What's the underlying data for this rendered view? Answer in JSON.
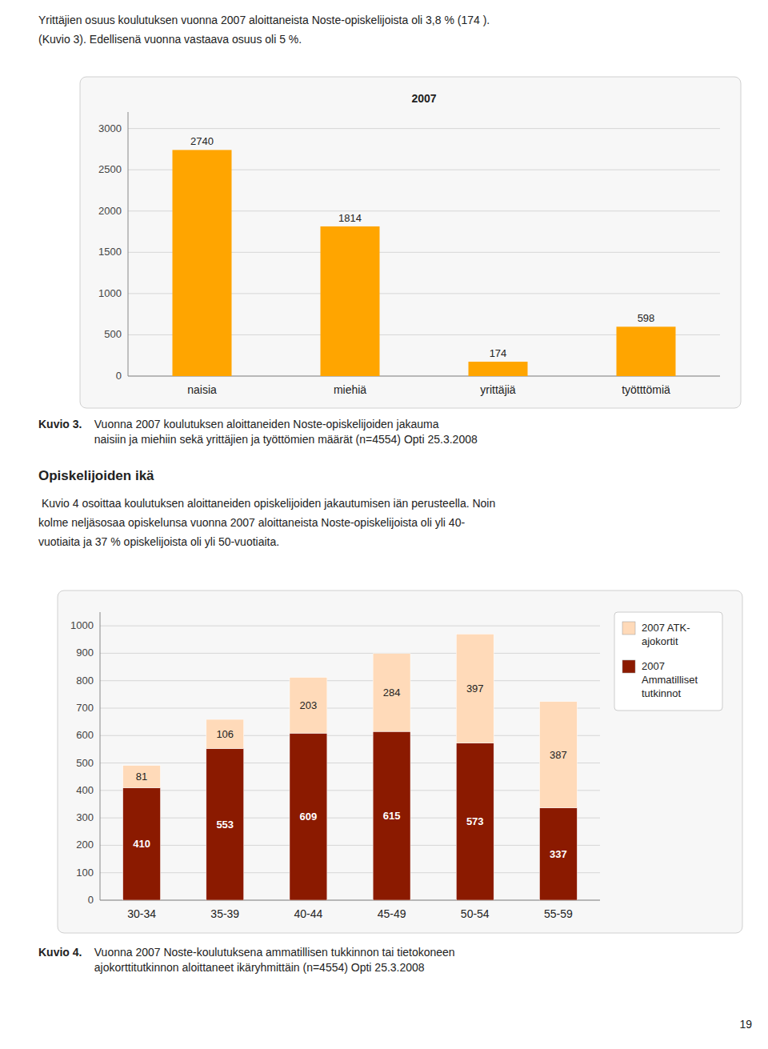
{
  "header_text": [
    "Yrittäjien osuus koulutuksen vuonna 2007 aloittaneista Noste-opiskelijoista oli 3,8 % (174 ).",
    "(Kuvio 3). Edellisenä vuonna vastaava osuus oli 5 %."
  ],
  "section_title": "Opiskelijoiden ikä",
  "section_text": [
    " Kuvio 4 osoittaa koulutuksen aloittaneiden opiskelijoiden jakautumisen iän perusteella. Noin",
    "kolme neljäsosaa opiskelunsa vuonna 2007 aloittaneista Noste-opiskelijoista oli yli 40-",
    "vuotiaita ja 37 % opiskelijoista oli yli 50-vuotiaita."
  ],
  "captions": [
    {
      "label": "Kuvio 3.",
      "text": "  Vuonna 2007 koulutuksen aloittaneiden Noste-opiskelijoiden jakauma\n  naisiin ja miehiin sekä yrittäjien ja työttömien määrät (n=4554) Opti 25.3.2008"
    },
    {
      "label": "Kuvio 4.",
      "text": "  Vuonna 2007 Noste-koulutuksena ammatillisen tukkinnon tai tietokoneen\n  ajokorttitutkinnon aloittaneet ikäryhmittäin (n=4554) Opti 25.3.2008"
    }
  ],
  "page_number": "19",
  "chart_data": [
    {
      "type": "bar",
      "title": "2007",
      "categories": [
        "naisia",
        "miehiä",
        "yrittäjiä",
        "työtttömiä"
      ],
      "values": [
        2740,
        1814,
        174,
        598
      ],
      "color": "#FFA500",
      "ylim": [
        0,
        3200
      ],
      "yticks": [
        0,
        500,
        1000,
        1500,
        2000,
        2500,
        3000
      ],
      "grid": true,
      "data_labels": true
    },
    {
      "type": "bar",
      "stacked": true,
      "categories": [
        "30-34",
        "35-39",
        "40-44",
        "45-49",
        "50-54",
        "55-59"
      ],
      "series": [
        {
          "name": "2007\nAmmatilliset\ntutkinnot",
          "color": "#8B1A00",
          "values": [
            410,
            553,
            609,
            615,
            573,
            337
          ]
        },
        {
          "name": "2007 ATK-\najokortit",
          "color": "#FFDAB9",
          "values": [
            81,
            106,
            203,
            284,
            397,
            387
          ]
        }
      ],
      "ylim": [
        0,
        1050
      ],
      "yticks": [
        0,
        100,
        200,
        300,
        400,
        500,
        600,
        700,
        800,
        900,
        1000
      ],
      "grid": true,
      "data_labels": true,
      "legend": "upper right"
    }
  ]
}
